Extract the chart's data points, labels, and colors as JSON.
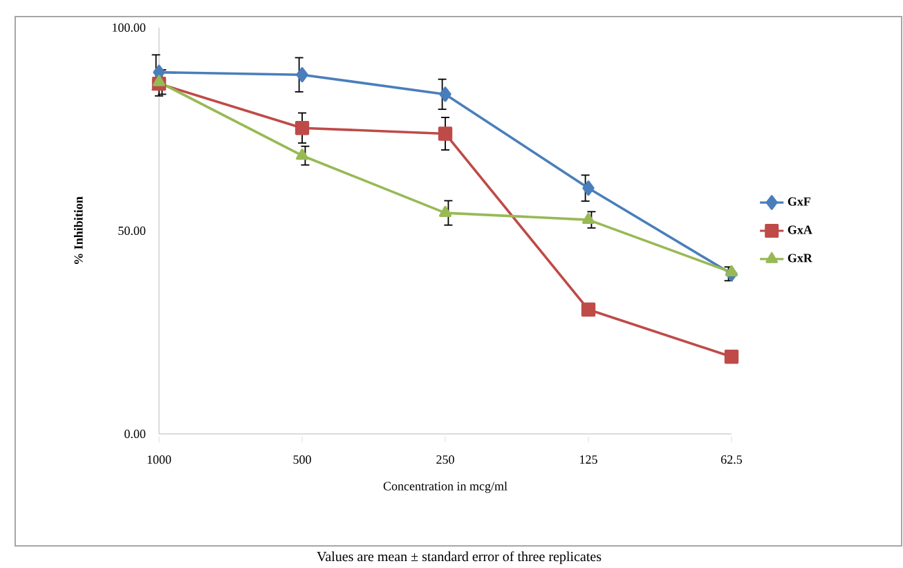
{
  "chart_data": {
    "type": "line",
    "xlabel": "Concentration in mcg/ml",
    "ylabel": "% Inhibition",
    "categories": [
      "1000",
      "500",
      "250",
      "125",
      "62.5"
    ],
    "ylim": [
      0,
      100
    ],
    "yticks": [
      {
        "value": 0,
        "label": "0.00"
      },
      {
        "value": 50,
        "label": "50.00"
      },
      {
        "value": 100,
        "label": "100.00"
      }
    ],
    "grid": false,
    "legend": "right",
    "series": [
      {
        "name": "GxF",
        "color": "#4a7ebb",
        "marker": "diamond",
        "values": [
          89,
          88.4,
          83.6,
          60.5,
          39.4
        ],
        "errors": [
          4.3,
          4.2,
          3.7,
          3.2,
          1.7
        ]
      },
      {
        "name": "GxA",
        "color": "#be4b48",
        "marker": "square",
        "values": [
          86.2,
          75.3,
          73.9,
          30.6,
          19
        ],
        "errors": [
          3,
          3.7,
          4,
          null,
          null
        ]
      },
      {
        "name": "GxR",
        "color": "#98b954",
        "marker": "triangle",
        "values": [
          86.6,
          68.5,
          54.4,
          52.7,
          39.8
        ],
        "errors": [
          3,
          2.3,
          3,
          2,
          null
        ]
      }
    ],
    "annotations": [
      "Values are mean ± standard error of three replicates"
    ]
  }
}
